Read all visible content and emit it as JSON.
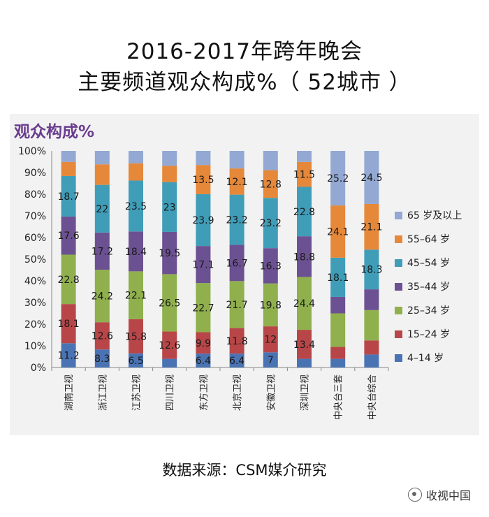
{
  "title": {
    "line1": "2016-2017年跨年晚会",
    "line2": "主要频道观众构成%（ 52城市 ）"
  },
  "source": "数据来源：CSM媒介研究",
  "watermark": {
    "text": "收视中国",
    "icon": "wechat-icon"
  },
  "chart_data": {
    "type": "bar",
    "stacked": true,
    "percent_stacked": true,
    "title": "观众构成%",
    "title_color": "#6a3d8f",
    "categories": [
      "湖南卫视",
      "浙江卫视",
      "江苏卫视",
      "四川卫视",
      "东方卫视",
      "北京卫视",
      "安徽卫视",
      "深圳卫视",
      "中央台三套",
      "中央台综合"
    ],
    "y_ticks": [
      "0%",
      "10%",
      "20%",
      "30%",
      "40%",
      "50%",
      "60%",
      "70%",
      "80%",
      "90%",
      "100%"
    ],
    "ylim": [
      0,
      100
    ],
    "legend_position": "right",
    "series": [
      {
        "name": "4–14 岁",
        "color": "#4a73b4",
        "values": [
          11.2,
          8.3,
          6.5,
          4.0,
          6.4,
          6.4,
          7.0,
          4.0,
          4.0,
          6.0
        ],
        "labels": [
          "11.2",
          "8.3",
          "6.5",
          null,
          "6.4",
          "6.4",
          "7",
          null,
          null,
          null
        ]
      },
      {
        "name": "15–24 岁",
        "color": "#b84648",
        "values": [
          18.1,
          12.6,
          15.8,
          12.6,
          9.9,
          11.8,
          12.0,
          13.4,
          5.5,
          6.5
        ],
        "labels": [
          "18.1",
          "12.6",
          "15.8",
          "12.6",
          "9.9",
          "11.8",
          "12",
          "13.4",
          null,
          null
        ]
      },
      {
        "name": "25–34 岁",
        "color": "#8fb04c",
        "values": [
          22.8,
          24.2,
          22.1,
          26.5,
          22.7,
          21.7,
          19.8,
          24.4,
          15.5,
          14.0
        ],
        "labels": [
          "22.8",
          "24.2",
          "22.1",
          "26.5",
          "22.7",
          "21.7",
          "19.8",
          "24.4",
          null,
          null
        ]
      },
      {
        "name": "35–44 岁",
        "color": "#6c5192",
        "values": [
          17.6,
          17.2,
          18.4,
          19.5,
          17.1,
          16.7,
          16.3,
          18.8,
          7.6,
          9.6
        ],
        "labels": [
          "17.6",
          "17.2",
          "18.4",
          "19.5",
          "17.1",
          "16.7",
          "16.3",
          "18.8",
          null,
          null
        ]
      },
      {
        "name": "45–54 岁",
        "color": "#3f9db8",
        "values": [
          18.7,
          22.0,
          23.5,
          23.0,
          23.9,
          23.2,
          23.2,
          22.8,
          18.1,
          18.3
        ],
        "labels": [
          "18.7",
          "22",
          "23.5",
          "23",
          "23.9",
          "23.2",
          "23.2",
          "22.8",
          "18.1",
          "18.3"
        ]
      },
      {
        "name": "55–64 岁",
        "color": "#e5883a",
        "values": [
          6.5,
          9.5,
          8.0,
          7.5,
          13.5,
          12.1,
          12.8,
          11.5,
          24.1,
          21.1
        ],
        "labels": [
          null,
          null,
          null,
          null,
          "13.5",
          "12.1",
          "12.8",
          "11.5",
          "24.1",
          "21.1"
        ]
      },
      {
        "name": "65 岁及以上",
        "color": "#93a8d2",
        "values": [
          5.1,
          6.2,
          5.7,
          6.9,
          6.5,
          8.1,
          8.9,
          5.1,
          25.2,
          24.5
        ],
        "labels": [
          null,
          null,
          null,
          null,
          null,
          null,
          null,
          null,
          "25.2",
          "24.5"
        ]
      }
    ]
  }
}
